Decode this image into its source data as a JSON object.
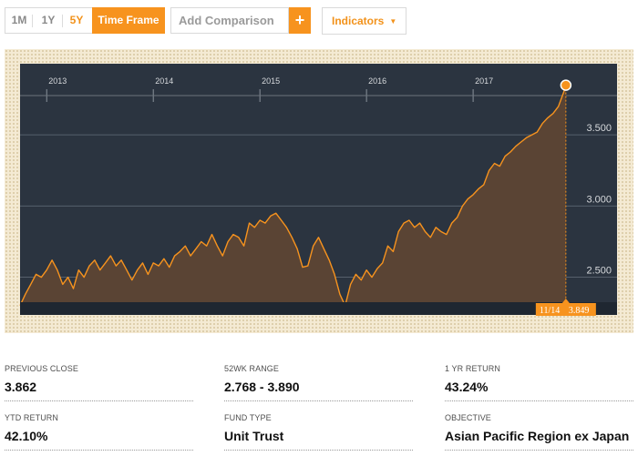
{
  "toolbar": {
    "ranges": [
      {
        "label": "1M",
        "active": false
      },
      {
        "label": "1Y",
        "active": false
      },
      {
        "label": "5Y",
        "active": true
      }
    ],
    "time_frame_label": "Time Frame",
    "comparison_placeholder": "Add Comparison",
    "add_label": "+",
    "indicators_label": "Indicators",
    "indicators_caret": "▼"
  },
  "chart_data": {
    "type": "area",
    "x_tick_labels": [
      "2013",
      "2014",
      "2015",
      "2016",
      "2017"
    ],
    "y_tick_labels": [
      "3.500",
      "3.000",
      "2.500"
    ],
    "ylim": [
      2.235,
      4.0
    ],
    "grid": true,
    "colors": {
      "line": "#f7931e",
      "fill": "#5a4434",
      "background": "#2b3440",
      "grid": "#56606c",
      "tick_text": "#d6d9dc",
      "badge": "#f7931e"
    },
    "series": [
      {
        "x": [
          2012.75,
          2012.8,
          2012.85,
          2012.9,
          2012.95,
          2013.0,
          2013.05,
          2013.1,
          2013.15,
          2013.2,
          2013.25,
          2013.3,
          2013.35,
          2013.4,
          2013.45,
          2013.5,
          2013.55,
          2013.6,
          2013.65,
          2013.7,
          2013.75,
          2013.8,
          2013.85,
          2013.9,
          2013.95,
          2014.0,
          2014.05,
          2014.1,
          2014.15,
          2014.2,
          2014.25,
          2014.3,
          2014.35,
          2014.4,
          2014.45,
          2014.5,
          2014.55,
          2014.6,
          2014.65,
          2014.7,
          2014.75,
          2014.8,
          2014.85,
          2014.9,
          2014.95,
          2015.0,
          2015.05,
          2015.1,
          2015.15,
          2015.2,
          2015.25,
          2015.3,
          2015.35,
          2015.4,
          2015.45,
          2015.5,
          2015.55,
          2015.6,
          2015.65,
          2015.7,
          2015.75,
          2015.8,
          2015.85,
          2015.9,
          2015.95,
          2016.0,
          2016.05,
          2016.1,
          2016.15,
          2016.2,
          2016.25,
          2016.3,
          2016.35,
          2016.4,
          2016.45,
          2016.5,
          2016.55,
          2016.6,
          2016.65,
          2016.7,
          2016.75,
          2016.8,
          2016.85,
          2016.9,
          2016.95,
          2017.0,
          2017.05,
          2017.1,
          2017.15,
          2017.2,
          2017.25,
          2017.3,
          2017.35,
          2017.4,
          2017.45,
          2017.5,
          2017.55,
          2017.6,
          2017.65,
          2017.7,
          2017.75,
          2017.8,
          2017.85,
          2017.87
        ],
        "values": [
          2.3,
          2.38,
          2.45,
          2.52,
          2.5,
          2.55,
          2.62,
          2.55,
          2.45,
          2.5,
          2.42,
          2.55,
          2.5,
          2.58,
          2.62,
          2.55,
          2.6,
          2.65,
          2.58,
          2.62,
          2.55,
          2.48,
          2.55,
          2.6,
          2.52,
          2.6,
          2.58,
          2.63,
          2.57,
          2.65,
          2.68,
          2.72,
          2.65,
          2.7,
          2.75,
          2.72,
          2.8,
          2.72,
          2.65,
          2.75,
          2.8,
          2.78,
          2.72,
          2.88,
          2.85,
          2.9,
          2.88,
          2.93,
          2.95,
          2.9,
          2.85,
          2.78,
          2.7,
          2.57,
          2.58,
          2.72,
          2.78,
          2.7,
          2.62,
          2.52,
          2.38,
          2.3,
          2.45,
          2.52,
          2.48,
          2.55,
          2.5,
          2.56,
          2.6,
          2.72,
          2.68,
          2.82,
          2.88,
          2.9,
          2.85,
          2.88,
          2.82,
          2.78,
          2.85,
          2.82,
          2.8,
          2.88,
          2.92,
          3.0,
          3.05,
          3.08,
          3.12,
          3.15,
          3.25,
          3.3,
          3.28,
          3.35,
          3.38,
          3.42,
          3.45,
          3.48,
          3.5,
          3.52,
          3.58,
          3.62,
          3.65,
          3.7,
          3.8,
          3.849
        ]
      }
    ],
    "last_point": {
      "date": "11/14",
      "value": "3.849"
    }
  },
  "stats": [
    {
      "label": "PREVIOUS CLOSE",
      "value": "3.862"
    },
    {
      "label": "52WK RANGE",
      "value": "2.768 - 3.890"
    },
    {
      "label": "1 YR RETURN",
      "value": "43.24%"
    },
    {
      "label": "YTD RETURN",
      "value": "42.10%"
    },
    {
      "label": "FUND TYPE",
      "value": "Unit Trust"
    },
    {
      "label": "OBJECTIVE",
      "value": "Asian Pacific Region ex Japan"
    }
  ]
}
